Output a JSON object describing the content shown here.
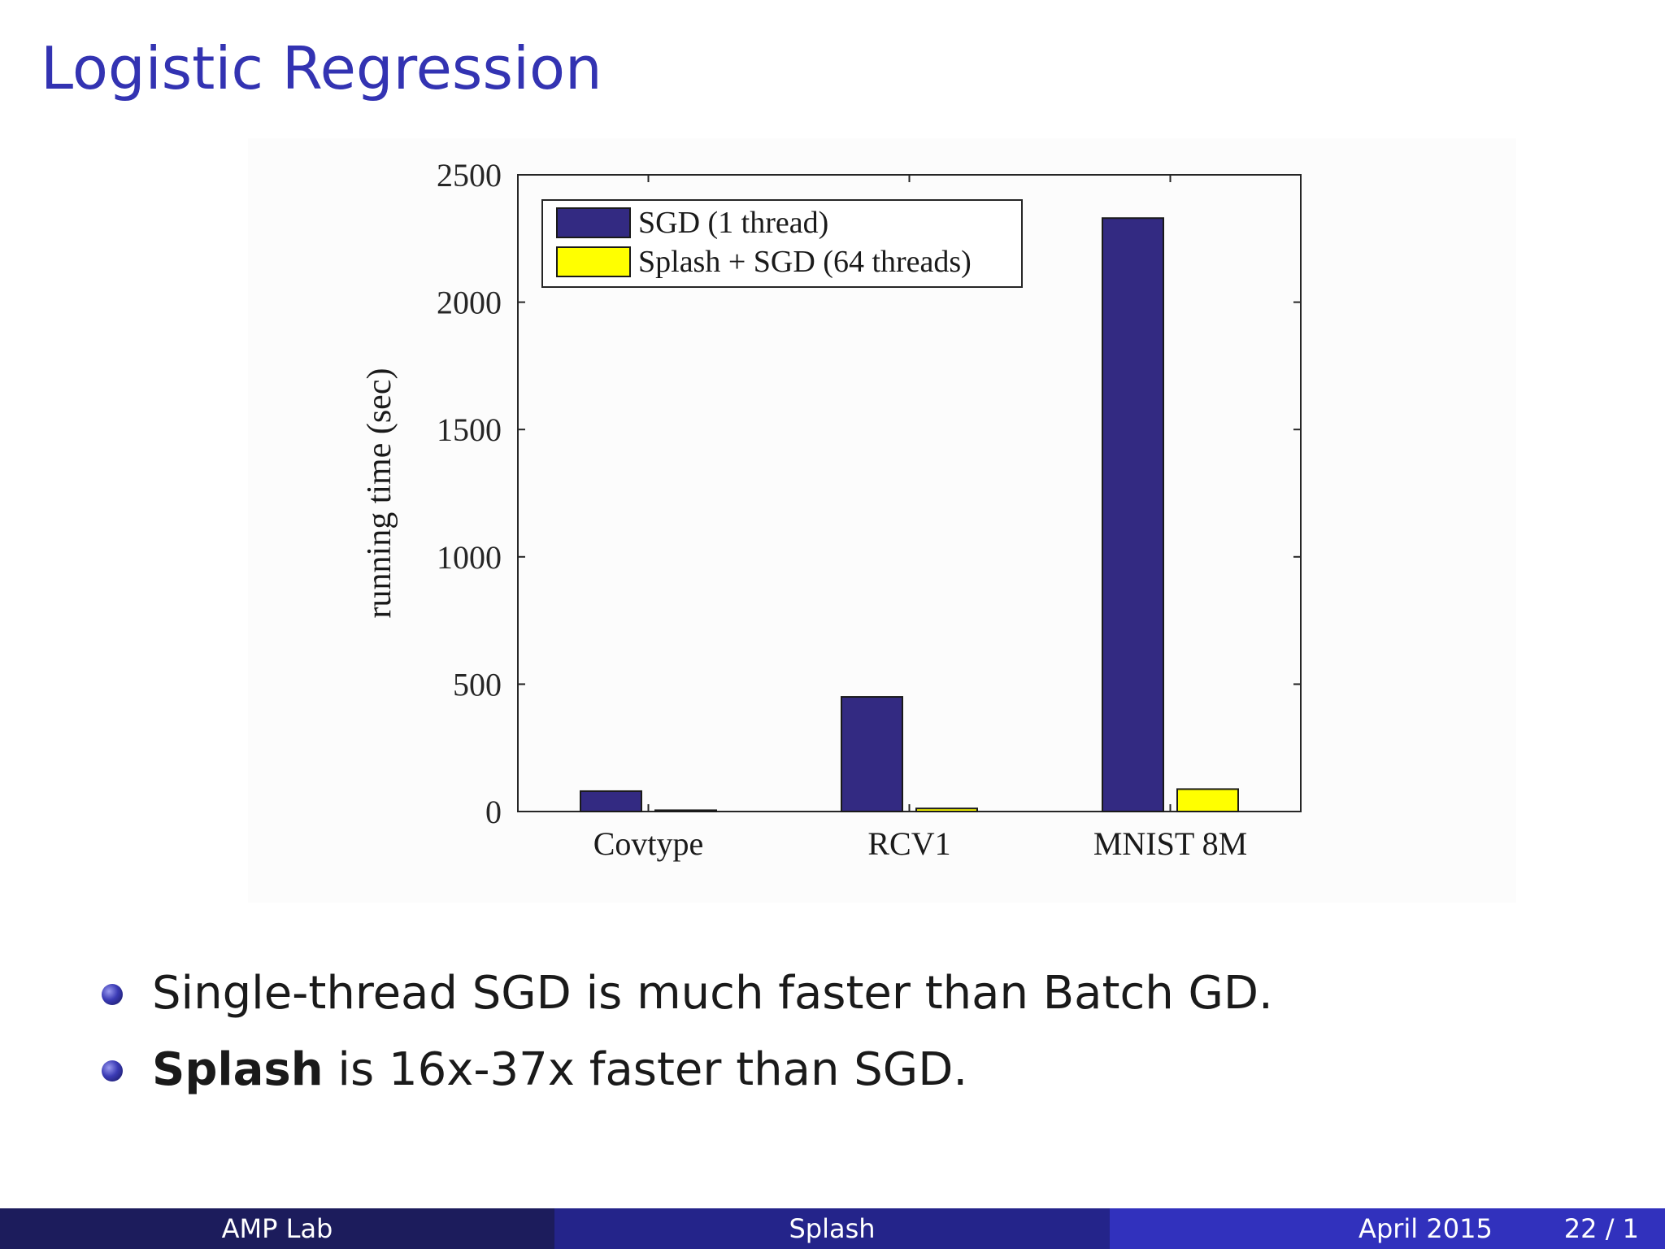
{
  "slide": {
    "title": "Logistic Regression"
  },
  "chart_data": {
    "type": "bar",
    "categories": [
      "Covtype",
      "RCV1",
      "MNIST 8M"
    ],
    "series": [
      {
        "name": "SGD (1 thread)",
        "color": "#332a82",
        "values": [
          80,
          450,
          2330
        ]
      },
      {
        "name": "Splash + SGD (64 threads)",
        "color": "#ffff00",
        "values": [
          5,
          12,
          88
        ]
      }
    ],
    "ylabel": "running time (sec)",
    "xlabel": "",
    "ylim": [
      0,
      2500
    ],
    "yticks": [
      0,
      500,
      1000,
      1500,
      2000,
      2500
    ],
    "legend_position": "top-left",
    "grid": false
  },
  "bullets": [
    {
      "bold": "",
      "text": "Single-thread SGD is much faster than Batch GD."
    },
    {
      "bold": "Splash",
      "text": " is 16x-37x faster than SGD."
    }
  ],
  "footer": {
    "left": "AMP Lab",
    "center": "Splash",
    "date": "April 2015",
    "page": "22 / 1"
  }
}
